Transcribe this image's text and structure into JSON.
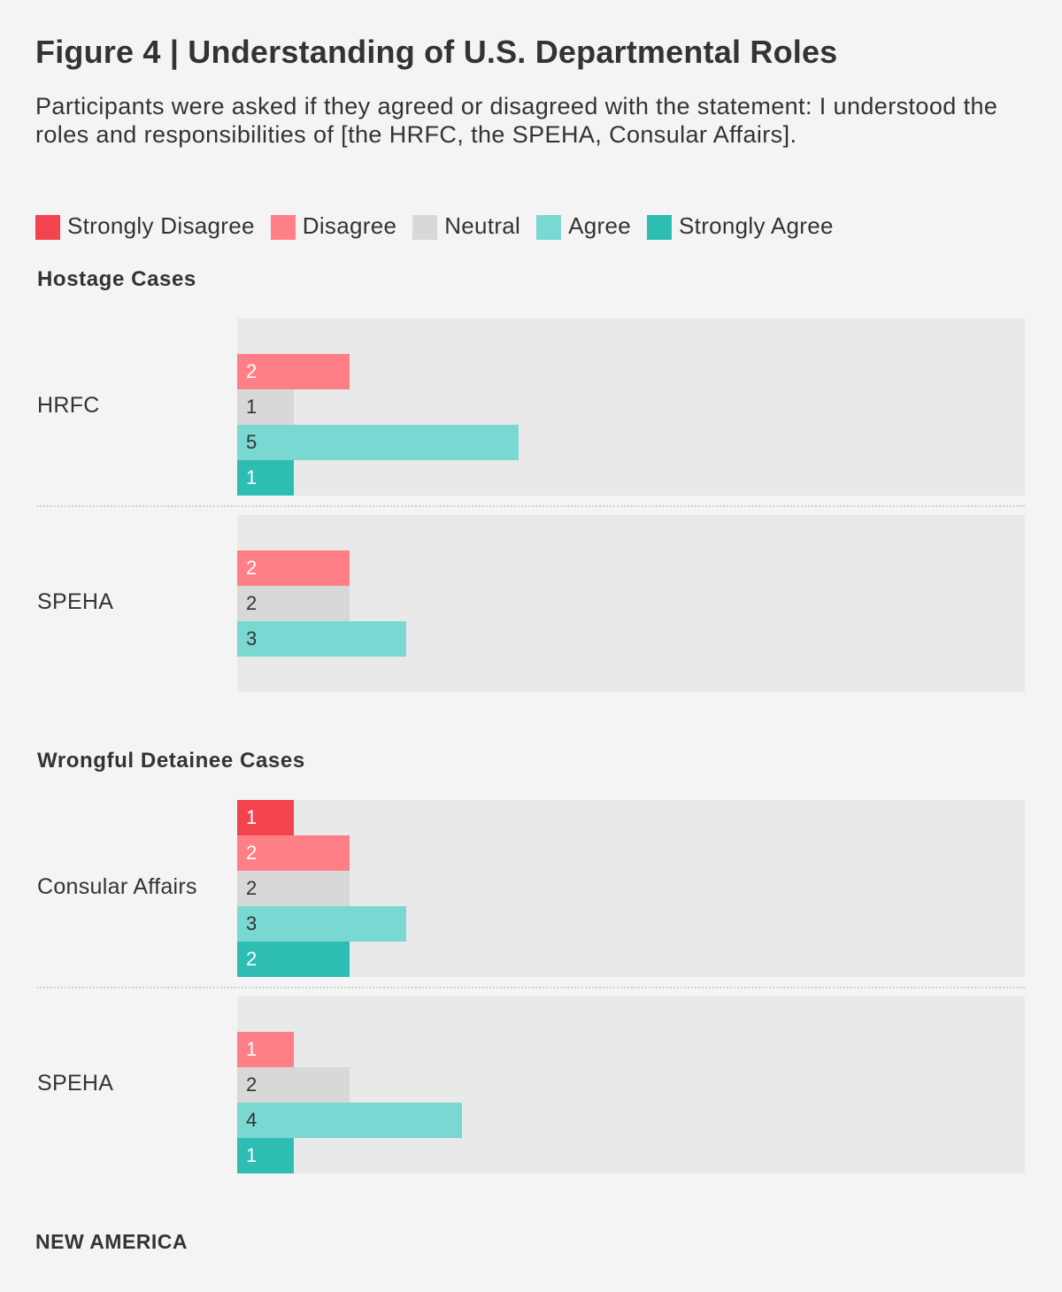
{
  "chart_data": {
    "type": "bar",
    "title": "Figure 4 | Understanding of U.S. Departmental Roles",
    "subtitle": "Participants were asked if they agreed or disagreed with the statement: I understood the roles and responsibilities of [the HRFC, the SPEHA, Consular Affairs].",
    "orientation": "horizontal",
    "xlim": [
      0,
      14
    ],
    "legend": [
      {
        "name": "Strongly Disagree",
        "color": "#f2434e"
      },
      {
        "name": "Disagree",
        "color": "#ff7f86"
      },
      {
        "name": "Neutral",
        "color": "#d8d8d8"
      },
      {
        "name": "Agree",
        "color": "#79d8d2"
      },
      {
        "name": "Strongly Agree",
        "color": "#2ebdb3"
      }
    ],
    "sections": [
      {
        "title": "Hostage Cases",
        "groups": [
          {
            "label": "HRFC",
            "bars": [
              {
                "category": "Disagree",
                "value": 2
              },
              {
                "category": "Neutral",
                "value": 1
              },
              {
                "category": "Agree",
                "value": 5
              },
              {
                "category": "Strongly Agree",
                "value": 1
              }
            ]
          },
          {
            "label": "SPEHA",
            "bars": [
              {
                "category": "Disagree",
                "value": 2
              },
              {
                "category": "Neutral",
                "value": 2
              },
              {
                "category": "Agree",
                "value": 3
              }
            ]
          }
        ]
      },
      {
        "title": "Wrongful Detainee Cases",
        "groups": [
          {
            "label": "Consular Affairs",
            "bars": [
              {
                "category": "Strongly Disagree",
                "value": 1
              },
              {
                "category": "Disagree",
                "value": 2
              },
              {
                "category": "Neutral",
                "value": 2
              },
              {
                "category": "Agree",
                "value": 3
              },
              {
                "category": "Strongly Agree",
                "value": 2
              }
            ]
          },
          {
            "label": "SPEHA",
            "bars": [
              {
                "category": "Disagree",
                "value": 1
              },
              {
                "category": "Neutral",
                "value": 2
              },
              {
                "category": "Agree",
                "value": 4
              },
              {
                "category": "Strongly Agree",
                "value": 1
              }
            ]
          }
        ]
      }
    ]
  },
  "footer": "NEW AMERICA"
}
